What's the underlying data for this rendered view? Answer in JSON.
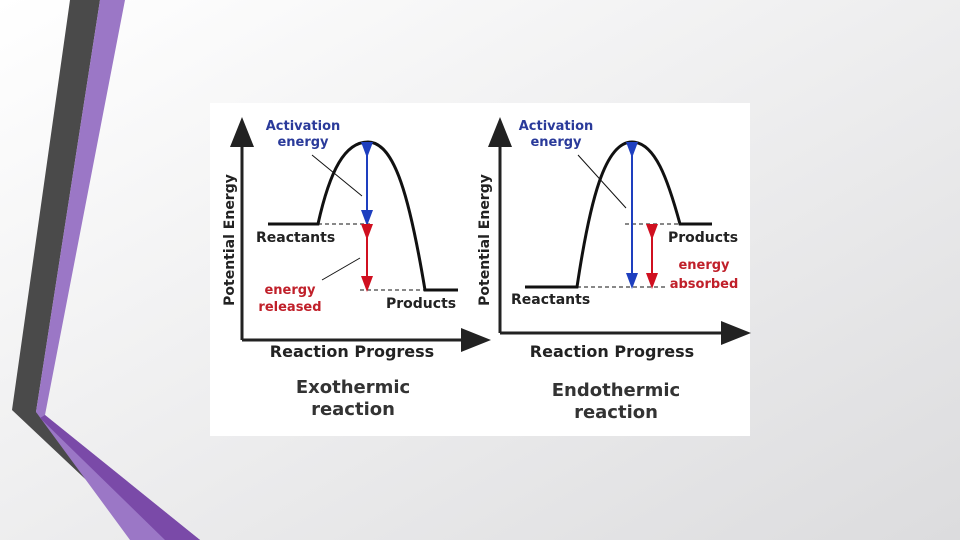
{
  "diagrams": [
    {
      "y_axis_label": "Potential Energy",
      "activation_label": [
        "Activation",
        "energy"
      ],
      "reactants_label": "Reactants",
      "energy_label": [
        "energy",
        "released"
      ],
      "products_label": "Products",
      "x_axis_label": "Reaction Progress",
      "caption": [
        "Exothermic",
        "reaction"
      ]
    },
    {
      "y_axis_label": "Potential Energy",
      "activation_label": [
        "Activation",
        "energy"
      ],
      "products_label": "Products",
      "energy_label": [
        "energy",
        "absorbed"
      ],
      "reactants_label": "Reactants",
      "x_axis_label": "Reaction Progress",
      "caption": [
        "Endothermic",
        "reaction"
      ]
    }
  ]
}
